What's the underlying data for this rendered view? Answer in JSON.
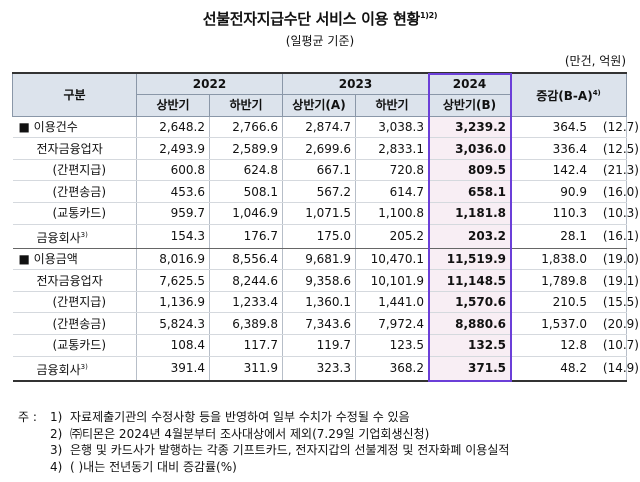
{
  "title": "선불전자지급수단 서비스 이용 현황",
  "title_note": "1)2)",
  "subtitle": "(일평균 기준)",
  "unit": "(만건, 억원)",
  "header": {
    "category": "구분",
    "years": [
      "2022",
      "2023",
      "2024"
    ],
    "halves": [
      "상반기",
      "하반기",
      "상반기(A)",
      "하반기",
      "상반기(B)"
    ],
    "change": "증감(B-A)",
    "change_note": "4)"
  },
  "rows": [
    {
      "label": "■ 이용건수",
      "note": "",
      "level": 1,
      "values": [
        "2,648.2",
        "2,766.6",
        "2,874.7",
        "3,038.3",
        "3,239.2"
      ],
      "change": "364.5",
      "pct": "(12.7)"
    },
    {
      "label": "전자금융업자",
      "note": "",
      "level": 2,
      "values": [
        "2,493.9",
        "2,589.9",
        "2,699.6",
        "2,833.1",
        "3,036.0"
      ],
      "change": "336.4",
      "pct": "(12.5)"
    },
    {
      "label": "(간편지급)",
      "note": "",
      "level": 3,
      "values": [
        "600.8",
        "624.8",
        "667.1",
        "720.8",
        "809.5"
      ],
      "change": "142.4",
      "pct": "(21.3)"
    },
    {
      "label": "(간편송금)",
      "note": "",
      "level": 3,
      "values": [
        "453.6",
        "508.1",
        "567.2",
        "614.7",
        "658.1"
      ],
      "change": "90.9",
      "pct": "(16.0)"
    },
    {
      "label": "(교통카드)",
      "note": "",
      "level": 3,
      "values": [
        "959.7",
        "1,046.9",
        "1,071.5",
        "1,100.8",
        "1,181.8"
      ],
      "change": "110.3",
      "pct": "(10.3)"
    },
    {
      "label": "금융회사",
      "note": "3)",
      "level": 2,
      "values": [
        "154.3",
        "176.7",
        "175.0",
        "205.2",
        "203.2"
      ],
      "change": "28.1",
      "pct": "(16.1)"
    },
    {
      "label": "■ 이용금액",
      "note": "",
      "level": 1,
      "values": [
        "8,016.9",
        "8,556.4",
        "9,681.9",
        "10,470.1",
        "11,519.9"
      ],
      "change": "1,838.0",
      "pct": "(19.0)"
    },
    {
      "label": "전자금융업자",
      "note": "",
      "level": 2,
      "values": [
        "7,625.5",
        "8,244.6",
        "9,358.6",
        "10,101.9",
        "11,148.5"
      ],
      "change": "1,789.8",
      "pct": "(19.1)"
    },
    {
      "label": "(간편지급)",
      "note": "",
      "level": 3,
      "values": [
        "1,136.9",
        "1,233.4",
        "1,360.1",
        "1,441.0",
        "1,570.6"
      ],
      "change": "210.5",
      "pct": "(15.5)"
    },
    {
      "label": "(간편송금)",
      "note": "",
      "level": 3,
      "values": [
        "5,824.3",
        "6,389.8",
        "7,343.6",
        "7,972.4",
        "8,880.6"
      ],
      "change": "1,537.0",
      "pct": "(20.9)"
    },
    {
      "label": "(교통카드)",
      "note": "",
      "level": 3,
      "values": [
        "108.4",
        "117.7",
        "119.7",
        "123.5",
        "132.5"
      ],
      "change": "12.8",
      "pct": "(10.7)"
    },
    {
      "label": "금융회사",
      "note": "3)",
      "level": 2,
      "values": [
        "391.4",
        "311.9",
        "323.3",
        "368.2",
        "371.5"
      ],
      "change": "48.2",
      "pct": "(14.9)"
    }
  ],
  "notes": {
    "lead": "주 :",
    "items": [
      {
        "num": "1)",
        "text": "자료제출기관의 수정사항 등을 반영하여 일부 수치가 수정될 수 있음"
      },
      {
        "num": "2)",
        "text": "㈜티몬은 2024년 4월분부터 조사대상에서 제외(7.29일 기업회생신청)"
      },
      {
        "num": "3)",
        "text": "은행 및 카드사가 발행하는 각종 기프트카드, 전자지갑의 선불계정 및 전자화폐 이용실적"
      },
      {
        "num": "4)",
        "text": "(  )내는 전년동기 대비 증감률(%)"
      }
    ]
  }
}
